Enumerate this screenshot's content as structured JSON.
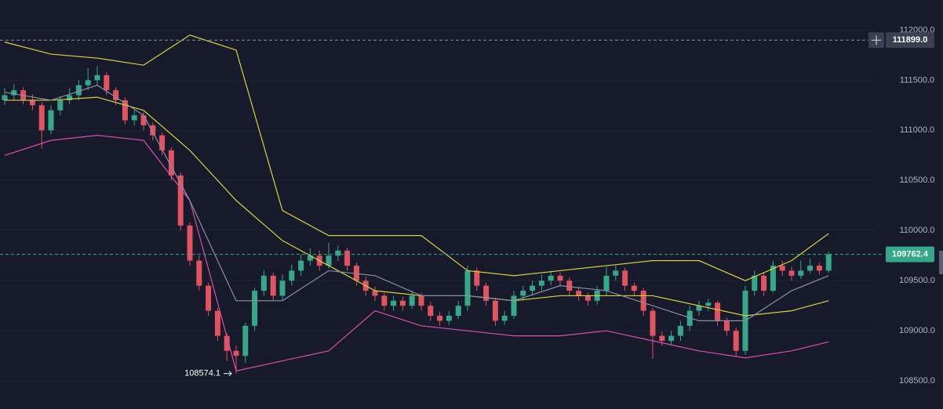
{
  "chart_data": {
    "type": "candlestick",
    "ylim": [
      108220,
      112300
    ],
    "yticks": [
      {
        "value": 108500,
        "label": "108500.0"
      },
      {
        "value": 109000,
        "label": "109000.0"
      },
      {
        "value": 109500,
        "label": "109500.0"
      },
      {
        "value": 110000,
        "label": "110000.0"
      },
      {
        "value": 110500,
        "label": "110500.0"
      },
      {
        "value": 111000,
        "label": "111000.0"
      },
      {
        "value": 111500,
        "label": "111500.0"
      },
      {
        "value": 112000,
        "label": "112000.0"
      }
    ],
    "grid": true,
    "up_color": "#36a88a",
    "down_color": "#e0535f",
    "open": [
      111300,
      111350,
      111400,
      111300,
      111250,
      111000,
      111200,
      111300,
      111350,
      111450,
      111500,
      111550,
      111400,
      111300,
      111100,
      111150,
      111050,
      110950,
      110800,
      110550,
      110050,
      109700,
      109450,
      109200,
      108950,
      108800,
      108750,
      109050,
      109400,
      109550,
      109350,
      109500,
      109600,
      109700,
      109750,
      109650,
      109750,
      109800,
      109650,
      109500,
      109400,
      109350,
      109250,
      109300,
      109250,
      109350,
      109250,
      109150,
      109100,
      109150,
      109250,
      109600,
      109450,
      109300,
      109100,
      109150,
      109350,
      109400,
      109450,
      109500,
      109550,
      109500,
      109400,
      109350,
      109300,
      109400,
      109550,
      109600,
      109450,
      109400,
      109200,
      108950,
      108900,
      108950,
      109050,
      109200,
      109250,
      109280,
      109100,
      109000,
      108800,
      109400,
      109550,
      109400,
      109650,
      109600,
      109550,
      109600,
      109650,
      109600
    ],
    "high": [
      111420,
      111460,
      111430,
      111360,
      111280,
      111250,
      111340,
      111420,
      111500,
      111620,
      111640,
      111580,
      111430,
      111330,
      111200,
      111180,
      111080,
      110980,
      110830,
      110580,
      110080,
      109750,
      109480,
      109230,
      108980,
      108850,
      109080,
      109430,
      109600,
      109580,
      109560,
      109660,
      109760,
      109820,
      109800,
      109880,
      109850,
      109830,
      109680,
      109540,
      109440,
      109380,
      109350,
      109340,
      109400,
      109380,
      109290,
      109190,
      109200,
      109300,
      109650,
      109630,
      109480,
      109330,
      109200,
      109400,
      109450,
      109500,
      109560,
      109600,
      109580,
      109530,
      109440,
      109380,
      109450,
      109640,
      109650,
      109630,
      109480,
      109430,
      109230,
      108990,
      109000,
      109100,
      109250,
      109300,
      109320,
      109300,
      109130,
      109030,
      109450,
      109600,
      109580,
      109700,
      109700,
      109640,
      109700,
      109720,
      109680,
      109790
    ],
    "low": [
      111250,
      111300,
      111260,
      111200,
      110820,
      110960,
      111150,
      111260,
      111300,
      111400,
      111450,
      111350,
      111250,
      111060,
      111050,
      111000,
      110900,
      110750,
      110500,
      110000,
      109650,
      109400,
      109150,
      108900,
      108700,
      108574.1,
      108680,
      109000,
      109350,
      109300,
      109300,
      109450,
      109550,
      109650,
      109600,
      109620,
      109700,
      109600,
      109450,
      109350,
      109300,
      109200,
      109200,
      109200,
      109220,
      109200,
      109100,
      109050,
      109060,
      109120,
      109200,
      109400,
      109250,
      109050,
      109060,
      109120,
      109300,
      109350,
      109400,
      109450,
      109450,
      109350,
      109300,
      109250,
      109260,
      109350,
      109500,
      109400,
      109350,
      109150,
      108720,
      108850,
      108860,
      108900,
      109000,
      109150,
      109200,
      109050,
      108950,
      108750,
      108760,
      109350,
      109350,
      109380,
      109550,
      109500,
      109520,
      109570,
      109560,
      109580
    ],
    "close": [
      111350,
      111400,
      111300,
      111250,
      111000,
      111200,
      111300,
      111350,
      111450,
      111500,
      111550,
      111400,
      111300,
      111100,
      111150,
      111050,
      110950,
      110800,
      110550,
      110050,
      109700,
      109450,
      109200,
      108950,
      108800,
      108750,
      109050,
      109400,
      109550,
      109350,
      109500,
      109600,
      109700,
      109750,
      109650,
      109750,
      109800,
      109650,
      109500,
      109400,
      109350,
      109250,
      109300,
      109250,
      109350,
      109250,
      109150,
      109100,
      109150,
      109250,
      109600,
      109450,
      109300,
      109100,
      109150,
      109350,
      109400,
      109450,
      109500,
      109550,
      109500,
      109400,
      109350,
      109300,
      109400,
      109550,
      109600,
      109450,
      109400,
      109200,
      108950,
      108900,
      108950,
      109050,
      109200,
      109250,
      109280,
      109100,
      109000,
      108800,
      109400,
      109550,
      109400,
      109650,
      109600,
      109550,
      109600,
      109650,
      109600,
      109762.4
    ],
    "lines": [
      {
        "color": "#d9d23a",
        "x": [
          0,
          5,
          10,
          15,
          20,
          25,
          30,
          35,
          40,
          45,
          50,
          55,
          60,
          65,
          70,
          75,
          80,
          85,
          89
        ],
        "values": [
          111880,
          111760,
          111720,
          111650,
          111950,
          111800,
          110200,
          109950,
          109950,
          109950,
          109600,
          109550,
          109600,
          109650,
          109700,
          109700,
          109500,
          109700,
          109970
        ]
      },
      {
        "color": "#d9d23a",
        "x": [
          0,
          5,
          10,
          15,
          20,
          25,
          30,
          35,
          40,
          45,
          50,
          55,
          60,
          65,
          70,
          75,
          80,
          85,
          89
        ],
        "values": [
          111300,
          111300,
          111330,
          111200,
          110800,
          110300,
          109900,
          109650,
          109400,
          109350,
          109350,
          109300,
          109350,
          109350,
          109350,
          109250,
          109150,
          109200,
          109300
        ]
      },
      {
        "color": "#d94fa8",
        "x": [
          0,
          5,
          10,
          15,
          20,
          25,
          30,
          35,
          40,
          45,
          50,
          55,
          60,
          65,
          70,
          75,
          80,
          85,
          89
        ],
        "values": [
          110750,
          110900,
          110950,
          110900,
          110300,
          108600,
          108700,
          108800,
          109200,
          109050,
          109000,
          108950,
          108950,
          109000,
          108900,
          108800,
          108730,
          108800,
          108890
        ]
      },
      {
        "color": "#8a8fa8",
        "x": [
          0,
          5,
          10,
          15,
          20,
          25,
          30,
          35,
          40,
          45,
          50,
          55,
          60,
          65,
          70,
          75,
          80,
          85,
          89
        ],
        "values": [
          111380,
          111300,
          111450,
          111150,
          110300,
          109300,
          109300,
          109600,
          109550,
          109350,
          109350,
          109300,
          109450,
          109400,
          109250,
          109100,
          109100,
          109400,
          109550
        ]
      }
    ],
    "price_lines": [
      {
        "value": 111899,
        "label": "111899.0",
        "color": "#8a8fa8"
      },
      {
        "value": 109762.4,
        "color": "#36a88a"
      }
    ],
    "low_annotation": {
      "index": 25,
      "value": 108574.1
    }
  }
}
